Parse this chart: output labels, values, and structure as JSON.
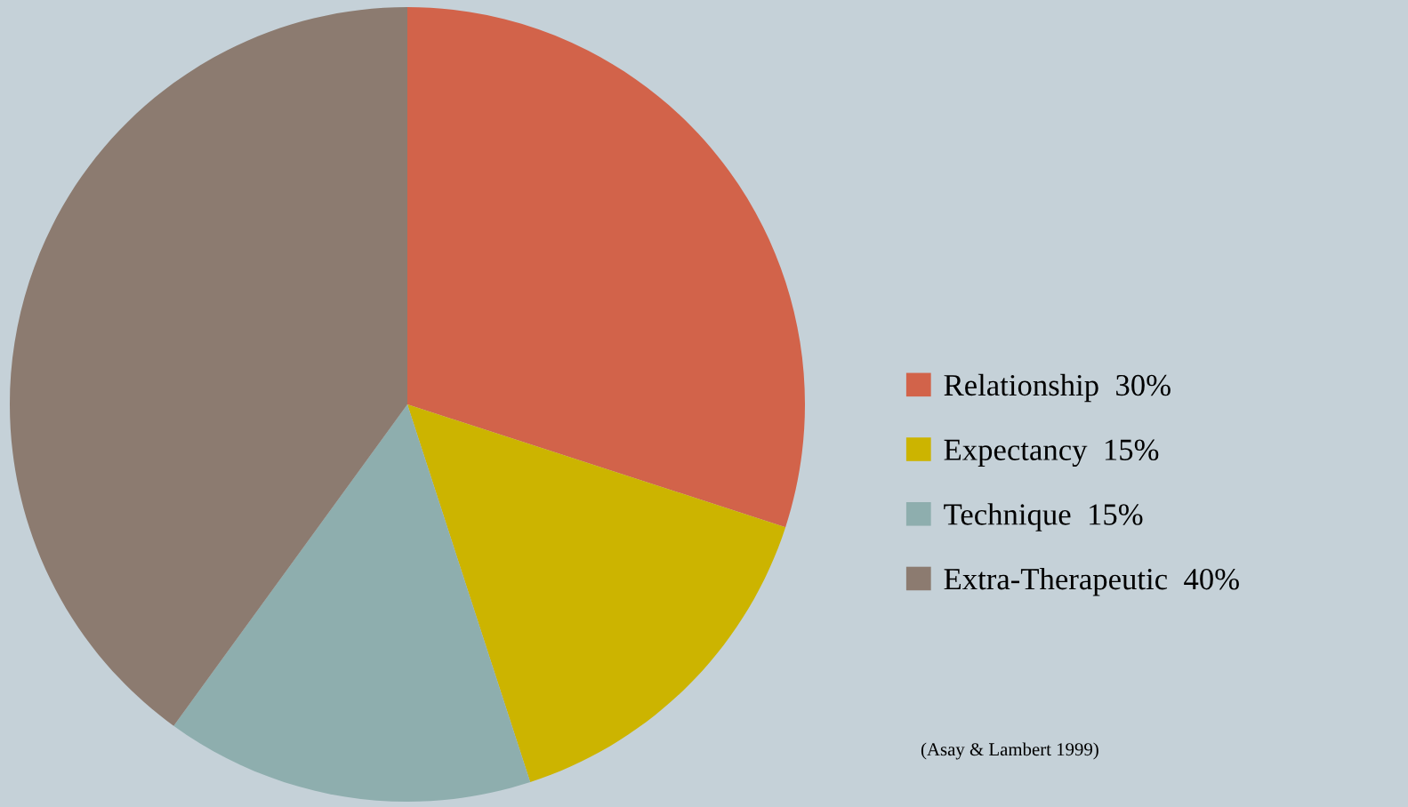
{
  "chart_data": {
    "type": "pie",
    "categories": [
      "Relationship",
      "Expectancy",
      "Technique",
      "Extra-Therapeutic"
    ],
    "values": [
      30,
      15,
      15,
      40
    ],
    "value_labels": [
      "30%",
      "15%",
      "15%",
      "40%"
    ],
    "colors": [
      "#d2634a",
      "#ccb400",
      "#8eaeae",
      "#8c7b70"
    ],
    "legend": "right",
    "annotations": [
      "(Asay & Lambert 1999)"
    ]
  }
}
